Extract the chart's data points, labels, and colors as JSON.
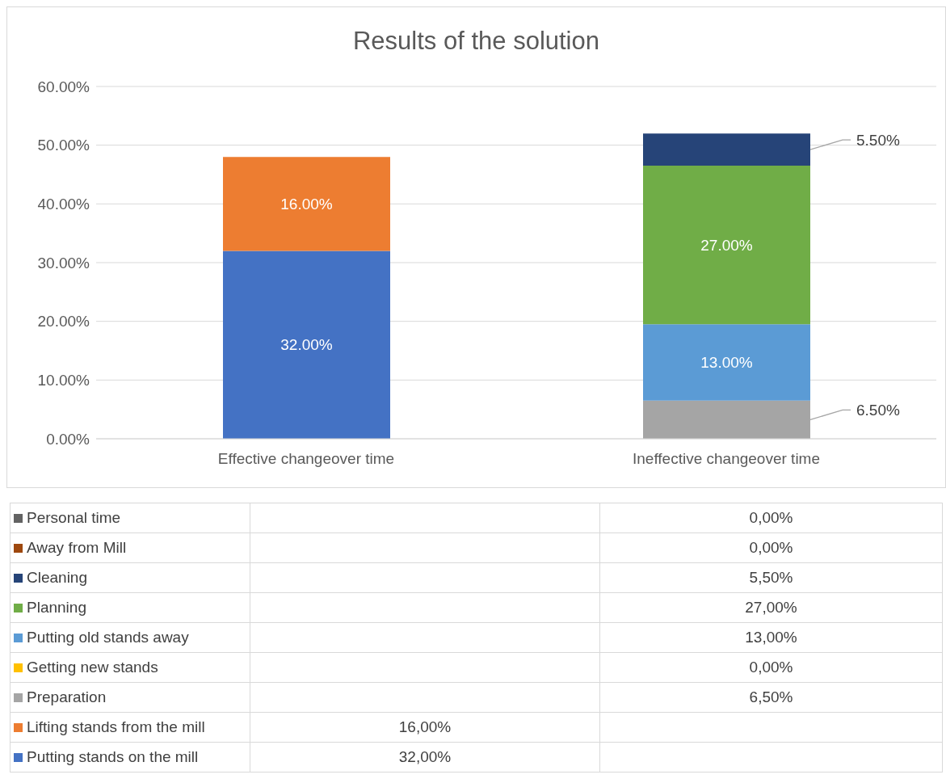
{
  "chart_data": {
    "type": "bar",
    "title": "Results of the solution",
    "stacked": true,
    "categories": [
      "Effective changeover time",
      "Ineffective changeover time"
    ],
    "ylim": [
      0,
      60
    ],
    "yticks": [
      {
        "value": 0,
        "label": "0.00%"
      },
      {
        "value": 10,
        "label": "10.00%"
      },
      {
        "value": 20,
        "label": "20.00%"
      },
      {
        "value": 30,
        "label": "30.00%"
      },
      {
        "value": 40,
        "label": "40.00%"
      },
      {
        "value": 50,
        "label": "50.00%"
      },
      {
        "value": 60,
        "label": "60.00%"
      }
    ],
    "grid": "y",
    "legend": "bottom",
    "series": [
      {
        "name": "Putting stands on the mill",
        "color": "#4472c4",
        "values": [
          32,
          null
        ],
        "value_labels": [
          "32.00%",
          null
        ]
      },
      {
        "name": "Lifting stands from the mill",
        "color": "#ed7d31",
        "values": [
          16,
          null
        ],
        "value_labels": [
          "16.00%",
          null
        ]
      },
      {
        "name": "Preparation",
        "color": "#a5a5a5",
        "values": [
          null,
          6.5
        ],
        "value_labels": [
          null,
          "6.50%"
        ]
      },
      {
        "name": "Getting new stands",
        "color": "#ffc000",
        "values": [
          null,
          0
        ],
        "value_labels": [
          null,
          null
        ]
      },
      {
        "name": "Putting old stands away",
        "color": "#5b9bd5",
        "values": [
          null,
          13
        ],
        "value_labels": [
          null,
          "13.00%"
        ]
      },
      {
        "name": "Planning",
        "color": "#70ad47",
        "values": [
          null,
          27
        ],
        "value_labels": [
          null,
          "27.00%"
        ]
      },
      {
        "name": "Cleaning",
        "color": "#264478",
        "values": [
          null,
          5.5
        ],
        "value_labels": [
          null,
          "5.50%"
        ]
      },
      {
        "name": "Away from Mill",
        "color": "#9e480e",
        "values": [
          null,
          0
        ],
        "value_labels": [
          null,
          null
        ]
      },
      {
        "name": "Personal time",
        "color": "#636363",
        "values": [
          null,
          0
        ],
        "value_labels": [
          null,
          null
        ]
      }
    ],
    "annotations": [
      "0,00%",
      "0,00%",
      "5,50%",
      "27,00%",
      "13,00%",
      "0,00%",
      "6,50%",
      "16,00%",
      "32,00%"
    ]
  }
}
